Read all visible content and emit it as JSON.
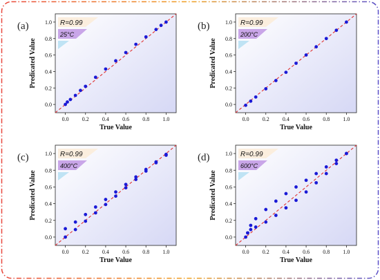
{
  "chart_data": [
    {
      "type": "scatter",
      "panel": "(a)",
      "xlabel": "True Value",
      "ylabel": "Predicated Value",
      "xlim": [
        -0.1,
        1.1
      ],
      "ylim": [
        -0.1,
        1.1
      ],
      "xticks": [
        "0.0",
        "0.2",
        "0.4",
        "0.6",
        "0.8",
        "1.0"
      ],
      "yticks": [
        "0.0",
        "0.2",
        "0.4",
        "0.6",
        "0.8",
        "1.0"
      ],
      "annotations": [
        "R=0.99",
        "25°C"
      ],
      "reference_line": "y = x",
      "series": [
        {
          "x": [
            0.0,
            0.02,
            0.05,
            0.1,
            0.15,
            0.2,
            0.3,
            0.4,
            0.5,
            0.6,
            0.7,
            0.8,
            0.9,
            0.95,
            1.0
          ],
          "y": [
            0.0,
            0.03,
            0.06,
            0.11,
            0.17,
            0.22,
            0.33,
            0.43,
            0.53,
            0.63,
            0.73,
            0.82,
            0.91,
            0.96,
            1.0
          ]
        }
      ]
    },
    {
      "type": "scatter",
      "panel": "(b)",
      "xlabel": "True Value",
      "ylabel": "Predicated Value",
      "xlim": [
        -0.1,
        1.1
      ],
      "ylim": [
        -0.1,
        1.1
      ],
      "xticks": [
        "0.0",
        "0.2",
        "0.4",
        "0.6",
        "0.8",
        "1.0"
      ],
      "yticks": [
        "0.0",
        "0.2",
        "0.4",
        "0.6",
        "0.8",
        "1.0"
      ],
      "annotations": [
        "R=0.99",
        "200°C"
      ],
      "reference_line": "y = x",
      "series": [
        {
          "x": [
            0.0,
            0.05,
            0.1,
            0.2,
            0.3,
            0.4,
            0.5,
            0.6,
            0.7,
            0.8,
            0.9,
            1.0
          ],
          "y": [
            -0.01,
            0.04,
            0.09,
            0.19,
            0.29,
            0.39,
            0.5,
            0.6,
            0.7,
            0.8,
            0.9,
            1.0
          ]
        }
      ]
    },
    {
      "type": "scatter",
      "panel": "(c)",
      "xlabel": "True Value",
      "ylabel": "Predicated Value",
      "xlim": [
        -0.1,
        1.1
      ],
      "ylim": [
        -0.1,
        1.1
      ],
      "xticks": [
        "0.0",
        "0.2",
        "0.4",
        "0.6",
        "0.8",
        "1.0"
      ],
      "yticks": [
        "0.0",
        "0.2",
        "0.4",
        "0.6",
        "0.8",
        "1.0"
      ],
      "annotations": [
        "R=0.99",
        "400°C"
      ],
      "reference_line": "y = x",
      "series": [
        {
          "x": [
            0.0,
            0.1,
            0.2,
            0.3,
            0.4,
            0.5,
            0.6,
            0.7,
            0.8,
            0.9,
            1.0
          ],
          "y": [
            0.1,
            0.18,
            0.27,
            0.36,
            0.45,
            0.54,
            0.63,
            0.72,
            0.81,
            0.9,
            0.99
          ]
        },
        {
          "x": [
            0.0,
            0.1,
            0.2,
            0.3,
            0.4,
            0.5,
            0.6,
            0.7,
            0.8,
            0.9,
            1.0
          ],
          "y": [
            0.0,
            0.09,
            0.19,
            0.29,
            0.39,
            0.49,
            0.59,
            0.69,
            0.79,
            0.89,
            0.98
          ]
        }
      ]
    },
    {
      "type": "scatter",
      "panel": "(d)",
      "xlabel": "True Value",
      "ylabel": "Predicated Value",
      "xlim": [
        -0.1,
        1.1
      ],
      "ylim": [
        -0.1,
        1.1
      ],
      "xticks": [
        "0.0",
        "0.2",
        "0.4",
        "0.6",
        "0.8",
        "1.0"
      ],
      "yticks": [
        "0.0",
        "0.2",
        "0.4",
        "0.6",
        "0.8",
        "1.0"
      ],
      "annotations": [
        "R=0.99",
        "600°C"
      ],
      "reference_line": "y = x",
      "series": [
        {
          "x": [
            0.02,
            0.05,
            0.1,
            0.2,
            0.3,
            0.4,
            0.5,
            0.6,
            0.7,
            0.8,
            0.9,
            1.0
          ],
          "y": [
            0.05,
            0.14,
            0.22,
            0.33,
            0.43,
            0.52,
            0.6,
            0.68,
            0.76,
            0.84,
            0.92,
            1.0
          ]
        },
        {
          "x": [
            0.0,
            0.02,
            0.05,
            0.1,
            0.2,
            0.3,
            0.4,
            0.5,
            0.6,
            0.7,
            0.8,
            0.9,
            1.0
          ],
          "y": [
            0.0,
            0.05,
            0.09,
            0.12,
            0.18,
            0.26,
            0.35,
            0.44,
            0.54,
            0.65,
            0.76,
            0.88,
            1.0
          ]
        }
      ]
    }
  ],
  "colors": {
    "points": "#1a1ad6",
    "reference_line": "#e03030",
    "frame_left": "#e8453a",
    "frame_mid": "#f0a020",
    "frame_right": "#5a4fc8",
    "plot_bg_top": "#ffffff",
    "plot_bg_bottom": "#d6d8f5",
    "badge_r": "#fbeede",
    "badge_temp": "#c9a6e8",
    "badge_swatch": "#bfe3f4"
  }
}
